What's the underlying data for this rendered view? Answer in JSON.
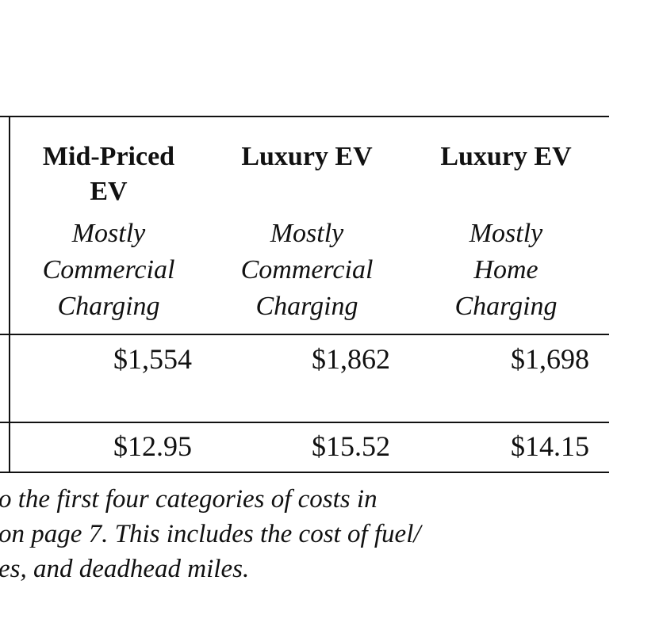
{
  "table": {
    "columns": [
      {
        "title_lines": [
          "Mid-Priced",
          "EV"
        ],
        "subtitle_lines": [
          "Mostly",
          "Commercial",
          "Charging"
        ]
      },
      {
        "title_lines": [
          "Luxury EV"
        ],
        "subtitle_lines": [
          "Mostly",
          "Commercial",
          "Charging"
        ]
      },
      {
        "title_lines": [
          "Luxury EV"
        ],
        "subtitle_lines": [
          "Mostly",
          "Home",
          "Charging"
        ]
      }
    ],
    "rows": [
      [
        "$1,554",
        "$1,862",
        "$1,698"
      ],
      [
        "$12.95",
        "$15.52",
        "$14.15"
      ]
    ]
  },
  "footnote": {
    "lines": [
      "o the first four categories of costs in",
      "on page 7. This includes the cost of fuel/",
      "es, and deadhead miles."
    ]
  }
}
